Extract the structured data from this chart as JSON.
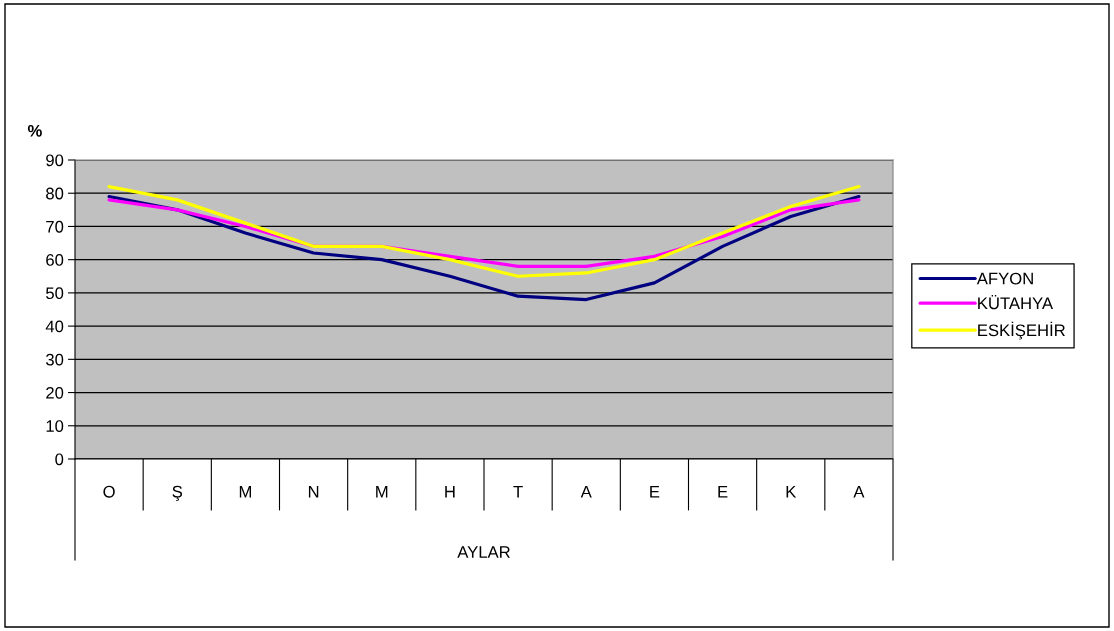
{
  "chart_data": {
    "type": "line",
    "ylabel": "%",
    "xlabel": "AYLAR",
    "categories": [
      "O",
      "Ş",
      "M",
      "N",
      "M",
      "H",
      "T",
      "A",
      "E",
      "E",
      "K",
      "A"
    ],
    "ylim": [
      0,
      90
    ],
    "yticks": [
      0,
      10,
      20,
      30,
      40,
      50,
      60,
      70,
      80,
      90
    ],
    "grid": "y",
    "legend": "right",
    "line_style": "solid",
    "series": [
      {
        "name": "AFYON",
        "color": "#000080",
        "values": [
          79,
          75,
          68,
          62,
          60,
          55,
          49,
          48,
          53,
          64,
          73,
          79
        ]
      },
      {
        "name": "KÜTAHYA",
        "color": "#ff00ff",
        "values": [
          78,
          75,
          70,
          64,
          64,
          61,
          58,
          58,
          61,
          67,
          75,
          78
        ]
      },
      {
        "name": "ESKİŞEHİR",
        "color": "#ffff00",
        "values": [
          82,
          78,
          71,
          64,
          64,
          60,
          55,
          56,
          60,
          68,
          76,
          82
        ]
      }
    ]
  }
}
